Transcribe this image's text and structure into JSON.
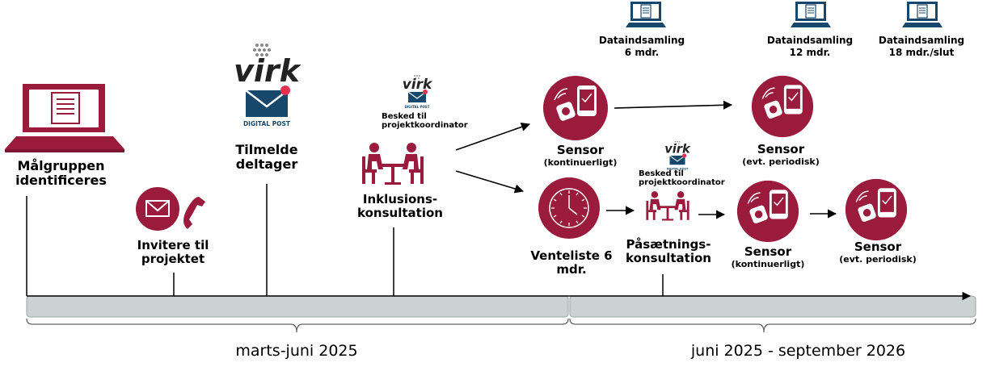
{
  "colors": {
    "accent": "#9b1b3c",
    "navy": "#17486b",
    "bar": "#cbd3d2",
    "line": "#000000"
  },
  "icons": [
    "laptop-icon",
    "envelope-icon",
    "phone-icon",
    "virk-logo",
    "digital-post-icon",
    "meeting-icon",
    "sensor-icon",
    "clock-icon",
    "computer-data-icon"
  ],
  "logos": {
    "virk": "virk",
    "digital_post": "DIGITAL POST"
  },
  "steps": {
    "target_group": "Målgruppen identificeres",
    "invite": "Invitere til projektet",
    "register": "Tilmelde deltager",
    "inclusion": "Inklusions- konsultation",
    "message_1": "Besked til projektkoordinator",
    "sensor_cont_1": "Sensor",
    "sensor_cont_1_sub": "(kontinuerligt)",
    "waitlist": "Venteliste 6 mdr.",
    "message_2": "Besked til projektkoordinator",
    "attach": "Påsætnings- konsultation",
    "sensor_per_1": "Sensor",
    "sensor_per_1_sub": "(evt. periodisk)",
    "sensor_cont_2": "Sensor",
    "sensor_cont_2_sub": "(kontinuerligt)",
    "sensor_per_2": "Sensor",
    "sensor_per_2_sub": "(evt. periodisk)"
  },
  "data_collection": [
    {
      "label": "Dataindsamling",
      "sub": "6 mdr."
    },
    {
      "label": "Dataindsamling",
      "sub": "12 mdr."
    },
    {
      "label": "Dataindsamling",
      "sub": "18 mdr./slut"
    }
  ],
  "periods": [
    "marts-juni 2025",
    "juni 2025 - september 2026"
  ]
}
